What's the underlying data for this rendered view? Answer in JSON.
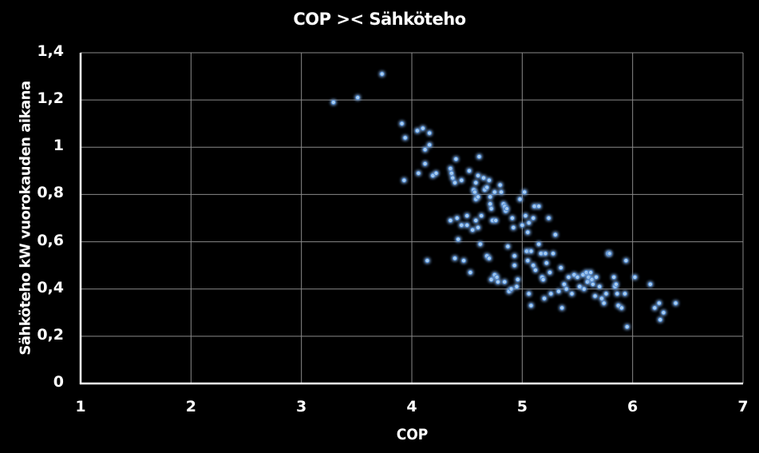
{
  "chart_data": {
    "type": "scatter",
    "title": "COP >< Sähköteho",
    "xlabel": "COP",
    "ylabel": "Sähköteho kW vuorokauden aikana",
    "xlim": [
      1,
      7
    ],
    "ylim": [
      0,
      1.4
    ],
    "x_ticks": [
      "1",
      "2",
      "3",
      "4",
      "5",
      "6",
      "7"
    ],
    "y_ticks": [
      "0",
      "0,2",
      "0,4",
      "0,6",
      "0,8",
      "1",
      "1,2",
      "1,4"
    ],
    "grid": true,
    "legend": "none",
    "marker_color": "#A9CDF0",
    "marker_glow": "#3D7FD1",
    "background": "#000000",
    "series": [
      {
        "name": "Sähköteho",
        "points": [
          [
            3.29,
            1.19
          ],
          [
            3.51,
            1.21
          ],
          [
            3.73,
            1.31
          ],
          [
            3.91,
            1.1
          ],
          [
            3.94,
            1.04
          ],
          [
            4.05,
            1.07
          ],
          [
            4.1,
            1.08
          ],
          [
            4.16,
            1.06
          ],
          [
            4.16,
            1.01
          ],
          [
            4.12,
            0.99
          ],
          [
            4.12,
            0.93
          ],
          [
            4.06,
            0.89
          ],
          [
            3.93,
            0.86
          ],
          [
            4.19,
            0.88
          ],
          [
            4.22,
            0.89
          ],
          [
            4.14,
            0.52
          ],
          [
            4.35,
            0.91
          ],
          [
            4.36,
            0.89
          ],
          [
            4.37,
            0.87
          ],
          [
            4.39,
            0.85
          ],
          [
            4.4,
            0.95
          ],
          [
            4.45,
            0.86
          ],
          [
            4.41,
            0.7
          ],
          [
            4.35,
            0.69
          ],
          [
            4.39,
            0.53
          ],
          [
            4.42,
            0.61
          ],
          [
            4.45,
            0.67
          ],
          [
            4.47,
            0.52
          ],
          [
            4.5,
            0.71
          ],
          [
            4.5,
            0.67
          ],
          [
            4.53,
            0.47
          ],
          [
            4.52,
            0.9
          ],
          [
            4.56,
            0.82
          ],
          [
            4.57,
            0.81
          ],
          [
            4.58,
            0.85
          ],
          [
            4.6,
            0.88
          ],
          [
            4.61,
            0.96
          ],
          [
            4.58,
            0.78
          ],
          [
            4.6,
            0.79
          ],
          [
            4.55,
            0.65
          ],
          [
            4.58,
            0.69
          ],
          [
            4.6,
            0.66
          ],
          [
            4.62,
            0.59
          ],
          [
            4.63,
            0.71
          ],
          [
            4.65,
            0.87
          ],
          [
            4.66,
            0.82
          ],
          [
            4.68,
            0.83
          ],
          [
            4.7,
            0.86
          ],
          [
            4.71,
            0.79
          ],
          [
            4.72,
            0.74
          ],
          [
            4.71,
            0.76
          ],
          [
            4.73,
            0.69
          ],
          [
            4.75,
            0.81
          ],
          [
            4.76,
            0.69
          ],
          [
            4.68,
            0.54
          ],
          [
            4.7,
            0.53
          ],
          [
            4.72,
            0.44
          ],
          [
            4.75,
            0.46
          ],
          [
            4.77,
            0.45
          ],
          [
            4.78,
            0.43
          ],
          [
            4.8,
            0.84
          ],
          [
            4.81,
            0.81
          ],
          [
            4.83,
            0.76
          ],
          [
            4.84,
            0.75
          ],
          [
            4.85,
            0.73
          ],
          [
            4.86,
            0.74
          ],
          [
            4.87,
            0.58
          ],
          [
            4.84,
            0.43
          ],
          [
            4.88,
            0.39
          ],
          [
            4.9,
            0.4
          ],
          [
            4.91,
            0.7
          ],
          [
            4.92,
            0.66
          ],
          [
            4.93,
            0.54
          ],
          [
            4.93,
            0.5
          ],
          [
            4.95,
            0.41
          ],
          [
            4.96,
            0.44
          ],
          [
            4.98,
            0.78
          ],
          [
            5.0,
            0.67
          ],
          [
            5.02,
            0.81
          ],
          [
            5.03,
            0.71
          ],
          [
            5.05,
            0.64
          ],
          [
            5.06,
            0.68
          ],
          [
            5.04,
            0.56
          ],
          [
            5.05,
            0.52
          ],
          [
            5.06,
            0.38
          ],
          [
            5.08,
            0.33
          ],
          [
            5.08,
            0.56
          ],
          [
            5.1,
            0.5
          ],
          [
            5.1,
            0.7
          ],
          [
            5.11,
            0.75
          ],
          [
            5.12,
            0.48
          ],
          [
            5.15,
            0.75
          ],
          [
            5.15,
            0.59
          ],
          [
            5.17,
            0.55
          ],
          [
            5.18,
            0.45
          ],
          [
            5.19,
            0.44
          ],
          [
            5.2,
            0.36
          ],
          [
            5.21,
            0.55
          ],
          [
            5.22,
            0.51
          ],
          [
            5.24,
            0.7
          ],
          [
            5.25,
            0.47
          ],
          [
            5.26,
            0.38
          ],
          [
            5.28,
            0.55
          ],
          [
            5.3,
            0.63
          ],
          [
            5.33,
            0.39
          ],
          [
            5.35,
            0.49
          ],
          [
            5.36,
            0.32
          ],
          [
            5.38,
            0.42
          ],
          [
            5.4,
            0.4
          ],
          [
            5.42,
            0.45
          ],
          [
            5.45,
            0.38
          ],
          [
            5.47,
            0.46
          ],
          [
            5.5,
            0.45
          ],
          [
            5.52,
            0.41
          ],
          [
            5.55,
            0.46
          ],
          [
            5.56,
            0.4
          ],
          [
            5.58,
            0.47
          ],
          [
            5.59,
            0.43
          ],
          [
            5.6,
            0.45
          ],
          [
            5.62,
            0.47
          ],
          [
            5.63,
            0.44
          ],
          [
            5.64,
            0.42
          ],
          [
            5.66,
            0.37
          ],
          [
            5.67,
            0.45
          ],
          [
            5.7,
            0.41
          ],
          [
            5.72,
            0.36
          ],
          [
            5.74,
            0.34
          ],
          [
            5.76,
            0.38
          ],
          [
            5.78,
            0.55
          ],
          [
            5.79,
            0.55
          ],
          [
            5.83,
            0.45
          ],
          [
            5.84,
            0.41
          ],
          [
            5.85,
            0.42
          ],
          [
            5.86,
            0.38
          ],
          [
            5.87,
            0.33
          ],
          [
            5.9,
            0.32
          ],
          [
            5.93,
            0.38
          ],
          [
            5.94,
            0.52
          ],
          [
            5.95,
            0.24
          ],
          [
            6.02,
            0.45
          ],
          [
            6.16,
            0.42
          ],
          [
            6.2,
            0.32
          ],
          [
            6.24,
            0.34
          ],
          [
            6.25,
            0.27
          ],
          [
            6.28,
            0.3
          ],
          [
            6.39,
            0.34
          ]
        ]
      }
    ]
  }
}
